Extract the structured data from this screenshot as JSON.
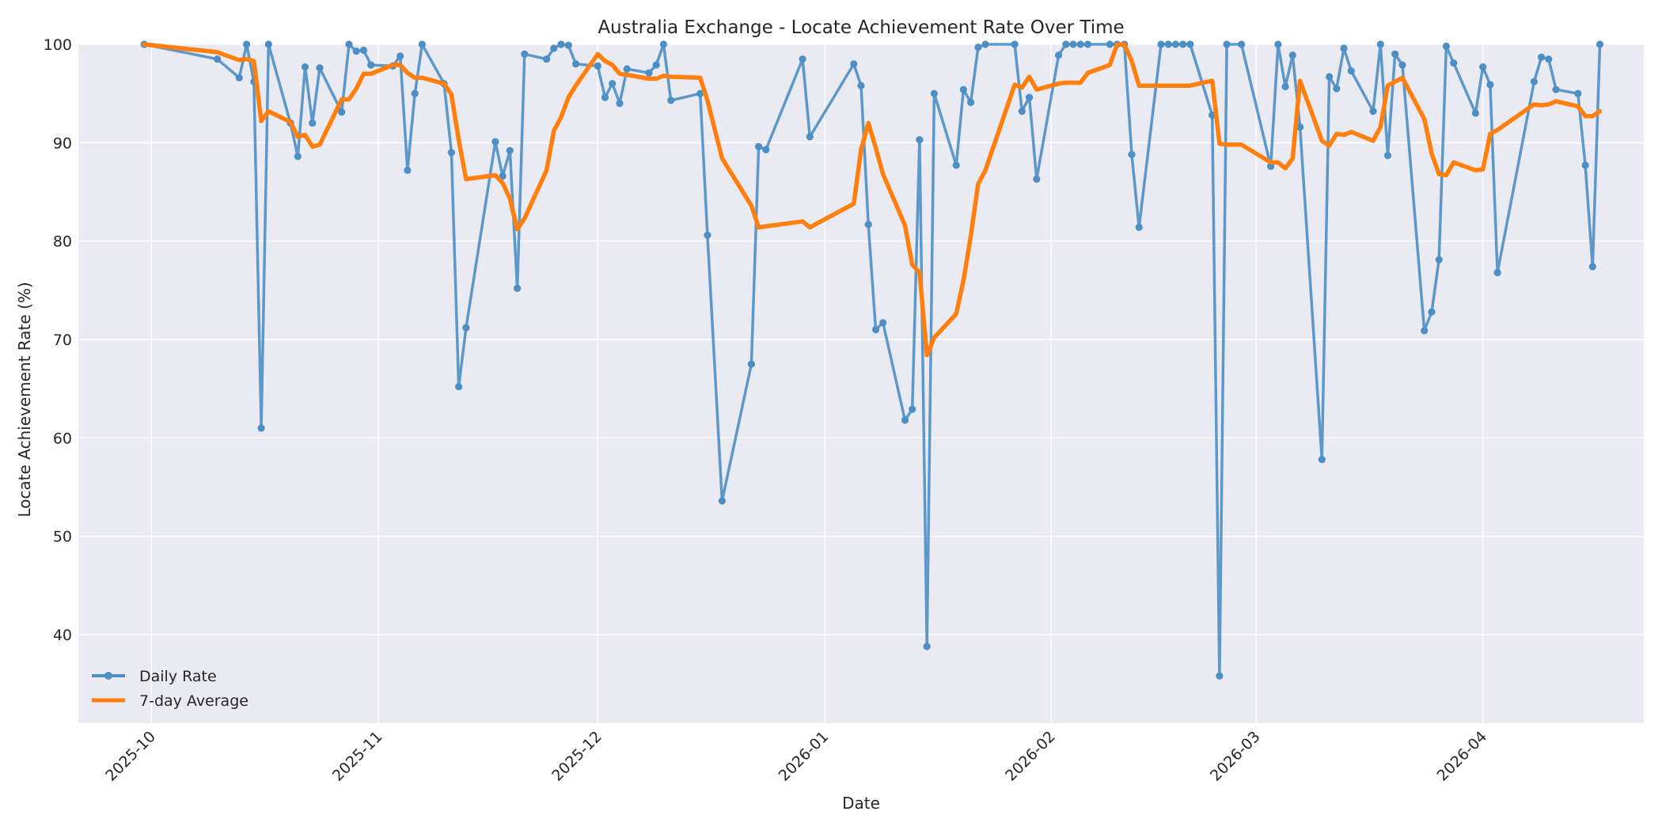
{
  "chart_data": {
    "type": "line",
    "title": "Australia Exchange - Locate Achievement Rate Over Time",
    "xlabel": "Date",
    "ylabel": "Locate Achievement Rate (%)",
    "ylim": [
      31,
      100
    ],
    "xlim": [
      "2025-09-21",
      "2026-04-23"
    ],
    "yticks": [
      40,
      50,
      60,
      70,
      80,
      90,
      100
    ],
    "xticks": [
      "2025-10-01",
      "2025-11-01",
      "2025-12-01",
      "2026-01-01",
      "2026-02-01",
      "2026-03-01",
      "2026-04-01"
    ],
    "xtick_labels": [
      "2025-10",
      "2025-11",
      "2025-12",
      "2026-01",
      "2026-02",
      "2026-03",
      "2026-04"
    ],
    "grid": true,
    "legend_position": "lower-left",
    "series": [
      {
        "name": "Daily Rate",
        "color": "#4c8fc4",
        "marker": "circle",
        "points": [
          [
            "2025-09-30",
            100
          ],
          [
            "2025-10-10",
            98.5
          ],
          [
            "2025-10-13",
            96.6
          ],
          [
            "2025-10-14",
            100
          ],
          [
            "2025-10-15",
            96.2
          ],
          [
            "2025-10-16",
            61
          ],
          [
            "2025-10-17",
            100
          ],
          [
            "2025-10-20",
            92
          ],
          [
            "2025-10-21",
            88.6
          ],
          [
            "2025-10-22",
            97.7
          ],
          [
            "2025-10-23",
            92
          ],
          [
            "2025-10-24",
            97.6
          ],
          [
            "2025-10-27",
            93.1
          ],
          [
            "2025-10-28",
            100
          ],
          [
            "2025-10-29",
            99.3
          ],
          [
            "2025-10-30",
            99.4
          ],
          [
            "2025-10-31",
            97.9
          ],
          [
            "2025-11-03",
            97.8
          ],
          [
            "2025-11-04",
            98.8
          ],
          [
            "2025-11-05",
            87.2
          ],
          [
            "2025-11-06",
            95
          ],
          [
            "2025-11-07",
            100
          ],
          [
            "2025-11-10",
            96
          ],
          [
            "2025-11-11",
            89
          ],
          [
            "2025-11-12",
            65.2
          ],
          [
            "2025-11-13",
            71.2
          ],
          [
            "2025-11-17",
            90.1
          ],
          [
            "2025-11-18",
            86.6
          ],
          [
            "2025-11-19",
            89.2
          ],
          [
            "2025-11-20",
            75.2
          ],
          [
            "2025-11-21",
            99
          ],
          [
            "2025-11-24",
            98.5
          ],
          [
            "2025-11-25",
            99.6
          ],
          [
            "2025-11-26",
            100
          ],
          [
            "2025-11-27",
            99.9
          ],
          [
            "2025-11-28",
            98
          ],
          [
            "2025-12-01",
            97.8
          ],
          [
            "2025-12-02",
            94.6
          ],
          [
            "2025-12-03",
            96
          ],
          [
            "2025-12-04",
            94
          ],
          [
            "2025-12-05",
            97.5
          ],
          [
            "2025-12-08",
            97.1
          ],
          [
            "2025-12-09",
            97.9
          ],
          [
            "2025-12-10",
            100
          ],
          [
            "2025-12-11",
            94.3
          ],
          [
            "2025-12-15",
            95
          ],
          [
            "2025-12-16",
            80.6
          ],
          [
            "2025-12-18",
            53.6
          ],
          [
            "2025-12-22",
            67.5
          ],
          [
            "2025-12-23",
            89.6
          ],
          [
            "2025-12-24",
            89.3
          ],
          [
            "2025-12-29",
            98.5
          ],
          [
            "2025-12-30",
            90.6
          ],
          [
            "2026-01-05",
            98
          ],
          [
            "2026-01-06",
            95.8
          ],
          [
            "2026-01-07",
            81.7
          ],
          [
            "2026-01-08",
            71
          ],
          [
            "2026-01-09",
            71.7
          ],
          [
            "2026-01-12",
            61.8
          ],
          [
            "2026-01-13",
            62.9
          ],
          [
            "2026-01-14",
            90.3
          ],
          [
            "2026-01-15",
            38.8
          ],
          [
            "2026-01-16",
            95
          ],
          [
            "2026-01-19",
            87.7
          ],
          [
            "2026-01-20",
            95.4
          ],
          [
            "2026-01-21",
            94.1
          ],
          [
            "2026-01-22",
            99.7
          ],
          [
            "2026-01-23",
            100
          ],
          [
            "2026-01-27",
            100
          ],
          [
            "2026-01-28",
            93.2
          ],
          [
            "2026-01-29",
            94.6
          ],
          [
            "2026-01-30",
            86.3
          ],
          [
            "2026-02-02",
            98.9
          ],
          [
            "2026-02-03",
            100
          ],
          [
            "2026-02-04",
            100
          ],
          [
            "2026-02-05",
            100
          ],
          [
            "2026-02-06",
            100
          ],
          [
            "2026-02-09",
            100
          ],
          [
            "2026-02-10",
            100
          ],
          [
            "2026-02-11",
            100
          ],
          [
            "2026-02-12",
            88.8
          ],
          [
            "2026-02-13",
            81.4
          ],
          [
            "2026-02-16",
            100
          ],
          [
            "2026-02-17",
            100
          ],
          [
            "2026-02-18",
            100
          ],
          [
            "2026-02-19",
            100
          ],
          [
            "2026-02-20",
            100
          ],
          [
            "2026-02-23",
            92.8
          ],
          [
            "2026-02-24",
            35.8
          ],
          [
            "2026-02-25",
            100
          ],
          [
            "2026-02-27",
            100
          ],
          [
            "2026-03-03",
            87.6
          ],
          [
            "2026-03-04",
            100
          ],
          [
            "2026-03-05",
            95.7
          ],
          [
            "2026-03-06",
            98.9
          ],
          [
            "2026-03-07",
            91.6
          ],
          [
            "2026-03-10",
            57.8
          ],
          [
            "2026-03-11",
            96.7
          ],
          [
            "2026-03-12",
            95.5
          ],
          [
            "2026-03-13",
            99.6
          ],
          [
            "2026-03-14",
            97.3
          ],
          [
            "2026-03-17",
            93.2
          ],
          [
            "2026-03-18",
            100
          ],
          [
            "2026-03-19",
            88.7
          ],
          [
            "2026-03-20",
            99
          ],
          [
            "2026-03-21",
            97.9
          ],
          [
            "2026-03-24",
            70.9
          ],
          [
            "2026-03-25",
            72.8
          ],
          [
            "2026-03-26",
            78.1
          ],
          [
            "2026-03-27",
            99.8
          ],
          [
            "2026-03-28",
            98.1
          ],
          [
            "2026-03-31",
            93
          ],
          [
            "2026-04-01",
            97.7
          ],
          [
            "2026-04-02",
            95.9
          ],
          [
            "2026-04-03",
            76.8
          ],
          [
            "2026-04-08",
            96.2
          ],
          [
            "2026-04-09",
            98.7
          ],
          [
            "2026-04-10",
            98.5
          ],
          [
            "2026-04-11",
            95.4
          ],
          [
            "2026-04-14",
            95
          ],
          [
            "2026-04-15",
            87.7
          ],
          [
            "2026-04-16",
            77.4
          ],
          [
            "2026-04-17",
            100
          ]
        ]
      },
      {
        "name": "7-day Average",
        "color": "#ff7f0e",
        "marker": "none",
        "points": [
          [
            "2025-09-30",
            100
          ],
          [
            "2025-10-10",
            99.2
          ],
          [
            "2025-10-13",
            98.4
          ],
          [
            "2025-10-14",
            98.5
          ],
          [
            "2025-10-15",
            98.3
          ],
          [
            "2025-10-16",
            92.2
          ],
          [
            "2025-10-17",
            93.2
          ],
          [
            "2025-10-20",
            92.1
          ],
          [
            "2025-10-21",
            90.6
          ],
          [
            "2025-10-22",
            90.8
          ],
          [
            "2025-10-23",
            89.6
          ],
          [
            "2025-10-24",
            89.8
          ],
          [
            "2025-10-27",
            94.4
          ],
          [
            "2025-10-28",
            94.4
          ],
          [
            "2025-10-29",
            95.5
          ],
          [
            "2025-10-30",
            97
          ],
          [
            "2025-10-31",
            97
          ],
          [
            "2025-11-03",
            97.9
          ],
          [
            "2025-11-04",
            97.9
          ],
          [
            "2025-11-05",
            97.1
          ],
          [
            "2025-11-06",
            96.6
          ],
          [
            "2025-11-07",
            96.6
          ],
          [
            "2025-11-10",
            96
          ],
          [
            "2025-11-11",
            94.9
          ],
          [
            "2025-11-12",
            90.3
          ],
          [
            "2025-11-13",
            86.3
          ],
          [
            "2025-11-17",
            86.7
          ],
          [
            "2025-11-18",
            85.9
          ],
          [
            "2025-11-19",
            84.3
          ],
          [
            "2025-11-20",
            81.2
          ],
          [
            "2025-11-21",
            82.3
          ],
          [
            "2025-11-24",
            87.2
          ],
          [
            "2025-11-25",
            91.2
          ],
          [
            "2025-11-26",
            92.6
          ],
          [
            "2025-11-27",
            94.6
          ],
          [
            "2025-11-28",
            95.8
          ],
          [
            "2025-12-01",
            99
          ],
          [
            "2025-12-02",
            98.3
          ],
          [
            "2025-12-03",
            97.9
          ],
          [
            "2025-12-04",
            97
          ],
          [
            "2025-12-05",
            96.9
          ],
          [
            "2025-12-08",
            96.5
          ],
          [
            "2025-12-09",
            96.5
          ],
          [
            "2025-12-10",
            96.8
          ],
          [
            "2025-12-11",
            96.7
          ],
          [
            "2025-12-15",
            96.6
          ],
          [
            "2025-12-16",
            94.3
          ],
          [
            "2025-12-18",
            88.4
          ],
          [
            "2025-12-22",
            83.6
          ],
          [
            "2025-12-23",
            81.4
          ],
          [
            "2025-12-24",
            81.5
          ],
          [
            "2025-12-29",
            82
          ],
          [
            "2025-12-30",
            81.4
          ],
          [
            "2026-01-05",
            83.8
          ],
          [
            "2026-01-06",
            89.3
          ],
          [
            "2026-01-07",
            92
          ],
          [
            "2026-01-08",
            89.5
          ],
          [
            "2026-01-09",
            86.8
          ],
          [
            "2026-01-12",
            81.6
          ],
          [
            "2026-01-13",
            77.6
          ],
          [
            "2026-01-14",
            76.8
          ],
          [
            "2026-01-15",
            68.4
          ],
          [
            "2026-01-16",
            70.2
          ],
          [
            "2026-01-19",
            72.6
          ],
          [
            "2026-01-20",
            76
          ],
          [
            "2026-01-21",
            80.5
          ],
          [
            "2026-01-22",
            85.8
          ],
          [
            "2026-01-23",
            87.2
          ],
          [
            "2026-01-27",
            95.9
          ],
          [
            "2026-01-28",
            95.6
          ],
          [
            "2026-01-29",
            96.7
          ],
          [
            "2026-01-30",
            95.4
          ],
          [
            "2026-02-02",
            96
          ],
          [
            "2026-02-03",
            96.1
          ],
          [
            "2026-02-04",
            96.1
          ],
          [
            "2026-02-05",
            96.1
          ],
          [
            "2026-02-06",
            97.1
          ],
          [
            "2026-02-09",
            97.9
          ],
          [
            "2026-02-10",
            100
          ],
          [
            "2026-02-11",
            100
          ],
          [
            "2026-02-12",
            98.3
          ],
          [
            "2026-02-13",
            95.8
          ],
          [
            "2026-02-16",
            95.8
          ],
          [
            "2026-02-17",
            95.8
          ],
          [
            "2026-02-18",
            95.8
          ],
          [
            "2026-02-19",
            95.8
          ],
          [
            "2026-02-20",
            95.8
          ],
          [
            "2026-02-23",
            96.3
          ],
          [
            "2026-02-24",
            89.9
          ],
          [
            "2026-02-25",
            89.8
          ],
          [
            "2026-02-27",
            89.8
          ],
          [
            "2026-03-03",
            88
          ],
          [
            "2026-03-04",
            88
          ],
          [
            "2026-03-05",
            87.4
          ],
          [
            "2026-03-06",
            88.4
          ],
          [
            "2026-03-07",
            96.3
          ],
          [
            "2026-03-10",
            90.2
          ],
          [
            "2026-03-11",
            89.7
          ],
          [
            "2026-03-12",
            90.9
          ],
          [
            "2026-03-13",
            90.8
          ],
          [
            "2026-03-14",
            91.1
          ],
          [
            "2026-03-17",
            90.2
          ],
          [
            "2026-03-18",
            91.6
          ],
          [
            "2026-03-19",
            95.8
          ],
          [
            "2026-03-20",
            96.2
          ],
          [
            "2026-03-21",
            96.6
          ],
          [
            "2026-03-24",
            92.4
          ],
          [
            "2026-03-25",
            88.9
          ],
          [
            "2026-03-26",
            86.8
          ],
          [
            "2026-03-27",
            86.7
          ],
          [
            "2026-03-28",
            88
          ],
          [
            "2026-03-31",
            87.2
          ],
          [
            "2026-04-01",
            87.3
          ],
          [
            "2026-04-02",
            90.9
          ],
          [
            "2026-04-03",
            91.3
          ],
          [
            "2026-04-08",
            93.9
          ],
          [
            "2026-04-09",
            93.8
          ],
          [
            "2026-04-10",
            93.9
          ],
          [
            "2026-04-11",
            94.2
          ],
          [
            "2026-04-14",
            93.7
          ],
          [
            "2026-04-15",
            92.7
          ],
          [
            "2026-04-16",
            92.7
          ],
          [
            "2026-04-17",
            93.2
          ]
        ]
      }
    ]
  }
}
